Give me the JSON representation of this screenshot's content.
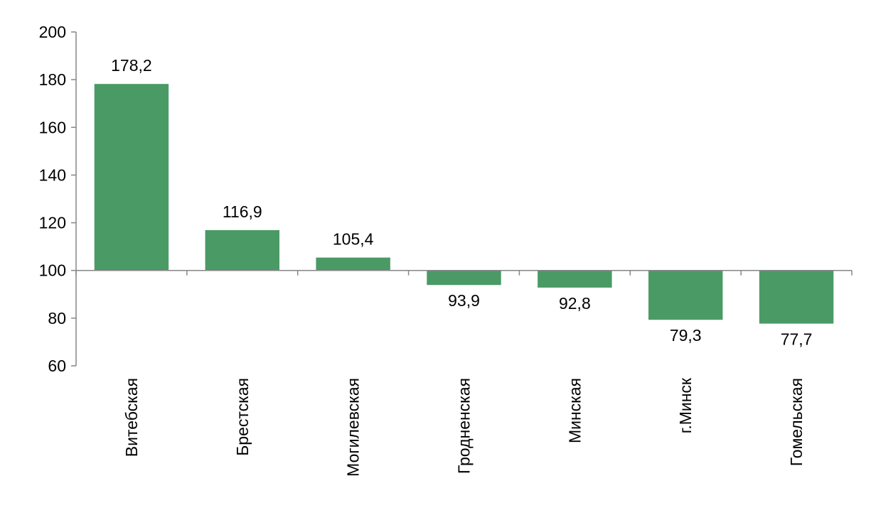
{
  "chart_data": {
    "type": "bar",
    "categories": [
      "Витебская",
      "Брестская",
      "Могилевская",
      "Гродненская",
      "Минская",
      "г.Минск",
      "Гомельская"
    ],
    "values": [
      178.2,
      116.9,
      105.4,
      93.9,
      92.8,
      79.3,
      77.7
    ],
    "value_labels": [
      "178,2",
      "116,9",
      "105,4",
      "93,9",
      "92,8",
      "79,3",
      "77,7"
    ],
    "baseline": 100,
    "ylim": [
      60,
      200
    ],
    "yticks": [
      60,
      80,
      100,
      120,
      140,
      160,
      180,
      200
    ],
    "bar_color": "#4a9a65",
    "axis_color": "#868686",
    "grid": false,
    "legend": "none",
    "title": "",
    "xlabel": "",
    "ylabel": ""
  }
}
